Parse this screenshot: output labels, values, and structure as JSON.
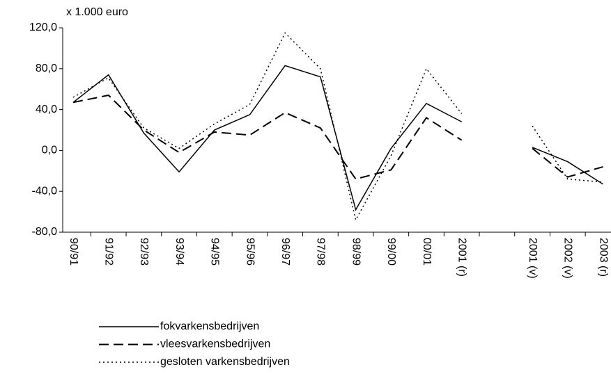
{
  "chart_data": {
    "type": "line",
    "y_label": "x 1.000 euro",
    "categories": [
      "90/91",
      "91/92",
      "92/93",
      "93/94",
      "94/95",
      "95/96",
      "96/97",
      "97/98",
      "98/99",
      "99/00",
      "00/01",
      "2001 (r)",
      null,
      "2001 (v)",
      "2002 (v)",
      "2003 (r)"
    ],
    "series": [
      {
        "name": "fokvarkensbedrijven",
        "color": "#000000",
        "style": "solid",
        "values": [
          47,
          74,
          17,
          -21,
          20,
          35,
          83,
          72,
          -58,
          2,
          46,
          28,
          null,
          3,
          -11,
          -33
        ]
      },
      {
        "name": "vleesvarkensbedrijven",
        "color": "#000000",
        "style": "dashed",
        "values": [
          47,
          54,
          20,
          -2,
          18,
          15,
          37,
          22,
          -28,
          -19,
          32,
          10,
          null,
          2,
          -26,
          -16
        ]
      },
      {
        "name": "gesloten varkensbedrijven",
        "color": "#000000",
        "style": "dotted",
        "values": [
          52,
          71,
          22,
          2,
          26,
          45,
          115,
          80,
          -68,
          -5,
          80,
          36,
          null,
          24,
          -28,
          -31
        ]
      }
    ],
    "ylim": [
      -80,
      120
    ],
    "yticks": [
      {
        "value": -80,
        "label": "-80,0"
      },
      {
        "value": -40,
        "label": "-40,0"
      },
      {
        "value": 0,
        "label": "0,0"
      },
      {
        "value": 40,
        "label": "40,0"
      },
      {
        "value": 80,
        "label": "80,0"
      },
      {
        "value": 120,
        "label": "120,0"
      }
    ],
    "grid": false,
    "legend": "bottom"
  }
}
